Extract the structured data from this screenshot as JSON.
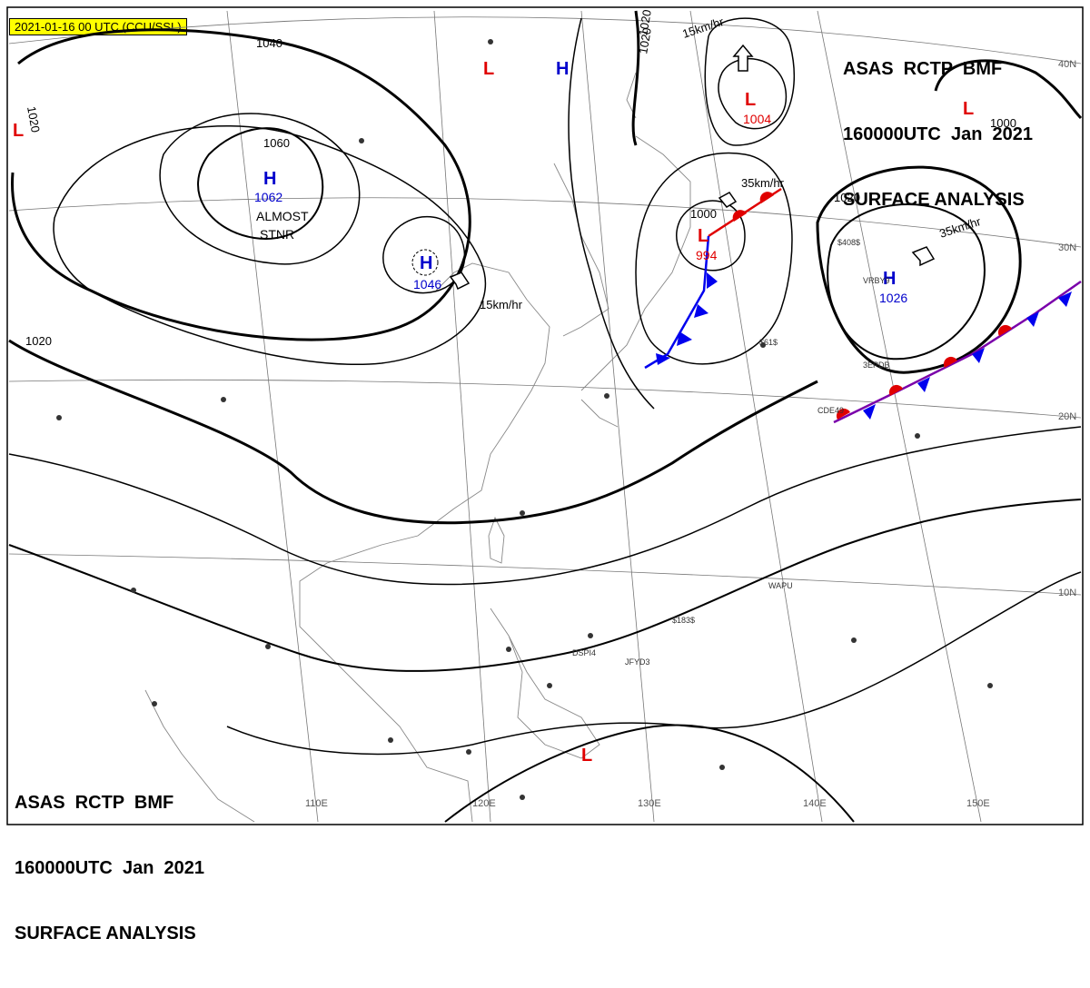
{
  "header": {
    "timestamp": "2021-01-16 00 UTC (CCU/SSL)",
    "top_right": {
      "line1": "ASAS  RCTP  BMF",
      "line2": "160000UTC  Jan  2021",
      "line3": "SURFACE ANALYSIS"
    },
    "bottom_left": {
      "line1": "ASAS  RCTP  BMF",
      "line2": "160000UTC  Jan  2021",
      "line3": "SURFACE ANALYSIS"
    }
  },
  "grid_labels": {
    "lon": [
      "110E",
      "120E",
      "130E",
      "140E",
      "150E"
    ],
    "lat": [
      "40N",
      "30N",
      "20N",
      "10N"
    ]
  },
  "isobar_labels": [
    "1040",
    "1020",
    "1020",
    "1060",
    "1000",
    "1020",
    "1000",
    "1020",
    "1020"
  ],
  "pressure_systems": [
    {
      "type": "H",
      "value": "1062",
      "note1": "ALMOST",
      "note2": "STNR"
    },
    {
      "type": "H",
      "value": "1046"
    },
    {
      "type": "H",
      "value": "1026"
    },
    {
      "type": "L",
      "value": "1004"
    },
    {
      "type": "L",
      "value": "994"
    },
    {
      "type": "H",
      "value": ""
    },
    {
      "type": "L",
      "value": ""
    },
    {
      "type": "L",
      "value": ""
    },
    {
      "type": "L",
      "value": ""
    },
    {
      "type": "L",
      "value": ""
    }
  ],
  "motion_labels": [
    "15km/hr",
    "15km/hr",
    "35km/hr",
    "35km/hr"
  ],
  "station_labels": [
    "CDE49",
    "3EPDB",
    "$408$",
    "$183$",
    "$61$",
    "VRBY9",
    "WAPU",
    "DSPI4",
    "JFYD3"
  ],
  "colors": {
    "high": "#0000cc",
    "low": "#e00000",
    "warm_front": "#e00000",
    "cold_front": "#0000ee",
    "highlight": "#ffff00"
  }
}
